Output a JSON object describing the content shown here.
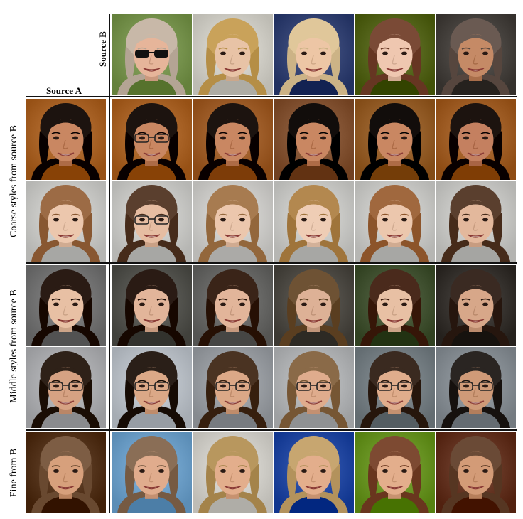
{
  "labels": {
    "source_b": "Source B",
    "source_a": "Source A",
    "coarse": "Coarse styles from source B",
    "middle": "Middle styles from source B",
    "fine": "Fine from B"
  },
  "colors": {
    "rule": "#111111",
    "skin_light": "#e8c3a6",
    "skin_medium": "#d49a73",
    "skin_dark": "#b57a58"
  },
  "panels": {
    "source_b": [
      {
        "name": "source-b-face-1",
        "bg": "#7e9a55",
        "skin": "#e6b59a",
        "hair": "#c8b8a8",
        "glasses": "sunglasses"
      },
      {
        "name": "source-b-face-2",
        "bg": "#d6d4cc",
        "skin": "#e8c3a6",
        "hair": "#c9a25a",
        "glasses": ""
      },
      {
        "name": "source-b-face-3",
        "bg": "#3b4a7a",
        "skin": "#edc6a5",
        "hair": "#e0c79a",
        "glasses": ""
      },
      {
        "name": "source-b-face-4",
        "bg": "#5b6b22",
        "skin": "#efc7b0",
        "hair": "#7a4a36",
        "glasses": ""
      },
      {
        "name": "source-b-face-5",
        "bg": "#4e4a46",
        "skin": "#c58a66",
        "hair": "#6a5a52",
        "glasses": ""
      }
    ],
    "coarse_row_1": [
      {
        "name": "coarse-1-source-a",
        "bg": "#b06a2e",
        "skin": "#c98762",
        "hair": "#1c130f",
        "glasses": ""
      },
      {
        "name": "coarse-1-from-b-1",
        "bg": "#b06a2e",
        "skin": "#c98762",
        "hair": "#1c130f",
        "glasses": "glasses"
      },
      {
        "name": "coarse-1-from-b-2",
        "bg": "#a56430",
        "skin": "#c98762",
        "hair": "#1c130f",
        "glasses": ""
      },
      {
        "name": "coarse-1-from-b-3",
        "bg": "#8a5a3a",
        "skin": "#c98762",
        "hair": "#120d0b",
        "glasses": ""
      },
      {
        "name": "coarse-1-from-b-4",
        "bg": "#9c6530",
        "skin": "#c98762",
        "hair": "#120d0b",
        "glasses": ""
      },
      {
        "name": "coarse-1-from-b-5",
        "bg": "#a7652d",
        "skin": "#c48060",
        "hair": "#1c130f",
        "glasses": ""
      }
    ],
    "coarse_row_2": [
      {
        "name": "coarse-2-source-a",
        "bg": "#cfcfcc",
        "skin": "#ecc7ad",
        "hair": "#9c6b45",
        "glasses": ""
      },
      {
        "name": "coarse-2-from-b-1",
        "bg": "#cfcfcc",
        "skin": "#e6bda2",
        "hair": "#5a3f2e",
        "glasses": "glasses"
      },
      {
        "name": "coarse-2-from-b-2",
        "bg": "#d3d2cf",
        "skin": "#ecc7ad",
        "hair": "#a77b50",
        "glasses": ""
      },
      {
        "name": "coarse-2-from-b-3",
        "bg": "#cfcfcc",
        "skin": "#efcdb5",
        "hair": "#b3884f",
        "glasses": ""
      },
      {
        "name": "coarse-2-from-b-4",
        "bg": "#cfcfcc",
        "skin": "#ecc7ad",
        "hair": "#a0683e",
        "glasses": ""
      },
      {
        "name": "coarse-2-from-b-5",
        "bg": "#cdcdca",
        "skin": "#e3b89c",
        "hair": "#5a3f2e",
        "glasses": ""
      }
    ],
    "middle_row_1": [
      {
        "name": "middle-1-source-a",
        "bg": "#7a7a7a",
        "skin": "#e8c0a4",
        "hair": "#2a1b14",
        "glasses": ""
      },
      {
        "name": "middle-1-from-b-1",
        "bg": "#5a5a55",
        "skin": "#e2b59a",
        "hair": "#2a1b14",
        "glasses": ""
      },
      {
        "name": "middle-1-from-b-2",
        "bg": "#6e6e6c",
        "skin": "#e2b59a",
        "hair": "#3a2418",
        "glasses": ""
      },
      {
        "name": "middle-1-from-b-3",
        "bg": "#55524c",
        "skin": "#ddb196",
        "hair": "#6e5234",
        "glasses": ""
      },
      {
        "name": "middle-1-from-b-4",
        "bg": "#4a5a3a",
        "skin": "#e8c0a4",
        "hair": "#4a2a1c",
        "glasses": ""
      },
      {
        "name": "middle-1-from-b-5",
        "bg": "#3e3a36",
        "skin": "#d7a789",
        "hair": "#3a2a22",
        "glasses": ""
      }
    ],
    "middle_row_2": [
      {
        "name": "middle-2-source-a",
        "bg": "#b2b3b6",
        "skin": "#d6a283",
        "hair": "#2e2118",
        "glasses": "glasses"
      },
      {
        "name": "middle-2-from-b-1",
        "bg": "#bfc5cc",
        "skin": "#dba887",
        "hair": "#2a1f18",
        "glasses": "glasses"
      },
      {
        "name": "middle-2-from-b-2",
        "bg": "#9fa3a8",
        "skin": "#dba887",
        "hair": "#4a3322",
        "glasses": "glasses"
      },
      {
        "name": "middle-2-from-b-3",
        "bg": "#b7b9bb",
        "skin": "#dfac8d",
        "hair": "#8a6a48",
        "glasses": "glasses"
      },
      {
        "name": "middle-2-from-b-4",
        "bg": "#7c858a",
        "skin": "#e0ad8c",
        "hair": "#3a2a20",
        "glasses": "glasses"
      },
      {
        "name": "middle-2-from-b-5",
        "bg": "#8d949a",
        "skin": "#cf9a78",
        "hair": "#2a2522",
        "glasses": "glasses"
      }
    ],
    "fine_row": [
      {
        "name": "fine-source-a",
        "bg": "#5a3a22",
        "skin": "#d7a07c",
        "hair": "#7d5d44",
        "glasses": ""
      },
      {
        "name": "fine-from-b-1",
        "bg": "#74a6cf",
        "skin": "#e0ac8d",
        "hair": "#8a6e56",
        "glasses": ""
      },
      {
        "name": "fine-from-b-2",
        "bg": "#d7d5cf",
        "skin": "#e3ae8c",
        "hair": "#b8975e",
        "glasses": ""
      },
      {
        "name": "fine-from-b-3",
        "bg": "#2a4fa8",
        "skin": "#e3ae8c",
        "hair": "#c7a670",
        "glasses": ""
      },
      {
        "name": "fine-from-b-4",
        "bg": "#6f9a2a",
        "skin": "#e3ae8c",
        "hair": "#7d4a32",
        "glasses": ""
      },
      {
        "name": "fine-from-b-5",
        "bg": "#6a3a28",
        "skin": "#d39b77",
        "hair": "#6a4a36",
        "glasses": ""
      }
    ]
  }
}
